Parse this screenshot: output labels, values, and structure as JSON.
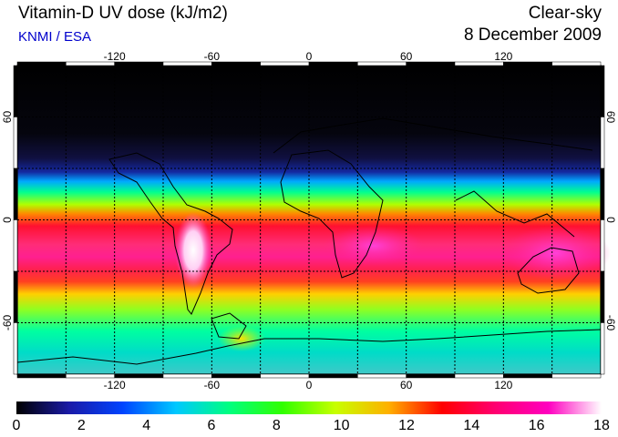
{
  "header": {
    "title": "Vitamin-D UV dose (kJ/m2)",
    "credit": "KNMI / ESA",
    "sky_condition": "Clear-sky",
    "date": "8 December 2009"
  },
  "map": {
    "lon_ticks": [
      "-120",
      "-60",
      "0",
      "60",
      "120"
    ],
    "lat_ticks": [
      "60",
      "0",
      "-60"
    ],
    "lon_range": [
      -180,
      180
    ],
    "lat_range": [
      -90,
      90
    ],
    "graticule": "dashed, every 30 degrees"
  },
  "colorbar": {
    "labels": [
      "0",
      "2",
      "4",
      "6",
      "8",
      "10",
      "12",
      "14",
      "16",
      "18"
    ],
    "range": [
      0,
      18
    ],
    "colors": [
      "#000000",
      "#1a1aa8",
      "#0044ff",
      "#00c8ff",
      "#00ff80",
      "#30ff00",
      "#c8ff00",
      "#ffb000",
      "#ff0000",
      "#ff0070",
      "#ff00c0",
      "#ffffff"
    ]
  }
}
